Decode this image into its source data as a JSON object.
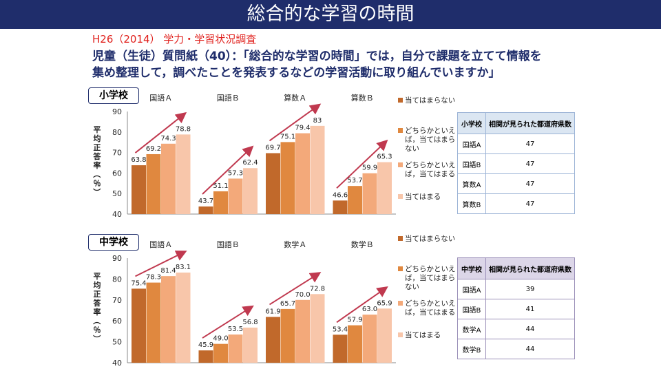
{
  "title": "総合的な学習の時間",
  "survey": "H26（2014）  学力・学習状況調査",
  "question_line1": "児童（生徒）質問紙（40）：「総合的な学習の時間」では，自分で課題を立てて情報を",
  "question_line2": "集め整理して，調べたことを発表するなどの学習活動に取り組んでいますか」",
  "colors": [
    "#c1692b",
    "#e0883f",
    "#f3a97a",
    "#f8c6aa"
  ],
  "arrow_color": "#c0394f",
  "legend": [
    "当てはまらない",
    "どちらかといえば，当てはまらない",
    "どちらかといえば，当てはまる",
    "当てはまる"
  ],
  "chart_data": [
    {
      "type": "bar",
      "school": "小学校",
      "ylabel": "平均正答率（％）",
      "ylim": [
        40,
        90
      ],
      "yticks": [
        "40",
        "50",
        "60",
        "70",
        "80",
        "90"
      ],
      "categories": [
        "国語Ａ",
        "国語Ｂ",
        "算数Ａ",
        "算数Ｂ"
      ],
      "groups": [
        {
          "values": [
            63.8,
            69.2,
            74.3,
            78.8
          ],
          "labels": [
            "63.8",
            "69.2",
            "74.3",
            "78.8"
          ]
        },
        {
          "values": [
            43.7,
            51.1,
            57.3,
            62.4
          ],
          "labels": [
            "43.7",
            "51.1",
            "57.3",
            "62.4"
          ]
        },
        {
          "values": [
            69.7,
            75.1,
            79.4,
            83
          ],
          "labels": [
            "69.7",
            "75.1",
            "79.4",
            "83"
          ]
        },
        {
          "values": [
            46.6,
            53.7,
            59.9,
            65.3
          ],
          "labels": [
            "46.6",
            "53.7",
            "59.9",
            "65.3"
          ]
        }
      ],
      "table": {
        "header": [
          "小学校",
          "相関が見られた都道府県数"
        ],
        "rows": [
          [
            "国語A",
            "47"
          ],
          [
            "国語B",
            "47"
          ],
          [
            "算数A",
            "47"
          ],
          [
            "算数B",
            "47"
          ]
        ]
      }
    },
    {
      "type": "bar",
      "school": "中学校",
      "ylabel": "平均正答率（％）",
      "ylim": [
        40,
        90
      ],
      "yticks": [
        "40",
        "50",
        "60",
        "70",
        "80",
        "90"
      ],
      "categories": [
        "国語Ａ",
        "国語Ｂ",
        "数学Ａ",
        "数学Ｂ"
      ],
      "groups": [
        {
          "values": [
            75.4,
            78.3,
            81.4,
            83.1
          ],
          "labels": [
            "75.4",
            "78.3",
            "81.4",
            "83.1"
          ]
        },
        {
          "values": [
            45.9,
            49.0,
            53.5,
            56.8
          ],
          "labels": [
            "45.9",
            "49.0",
            "53.5",
            "56.8"
          ]
        },
        {
          "values": [
            61.9,
            65.7,
            70.0,
            72.8
          ],
          "labels": [
            "61.9",
            "65.7",
            "70.0",
            "72.8"
          ]
        },
        {
          "values": [
            53.4,
            57.9,
            63.0,
            65.9
          ],
          "labels": [
            "53.4",
            "57.9",
            "63.0",
            "65.9"
          ]
        }
      ],
      "table": {
        "header": [
          "中学校",
          "相関が見られた都道府県数"
        ],
        "rows": [
          [
            "国語A",
            "39"
          ],
          [
            "国語B",
            "41"
          ],
          [
            "数学A",
            "44"
          ],
          [
            "数学B",
            "44"
          ]
        ]
      }
    }
  ]
}
